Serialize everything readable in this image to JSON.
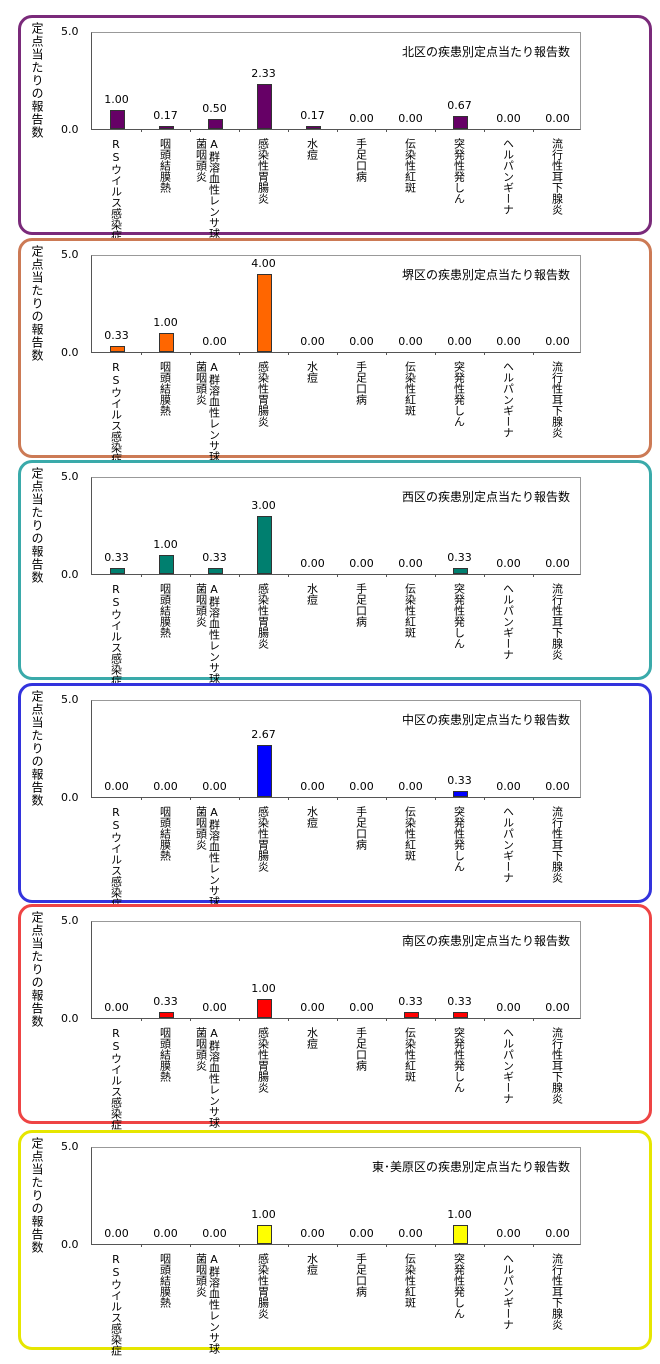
{
  "chart_data": [
    {
      "type": "bar",
      "title": "北区の疾患別定点当たり報告数",
      "ylabel": "定点当たりの報告数",
      "ylim": [
        0,
        5
      ],
      "yticks": [
        "0.0",
        "5.0"
      ],
      "color": "#660066",
      "border": "#7a2a7a",
      "categories": [
        "RSウイルス感染症",
        "咽頭結膜熱",
        "A群溶血性レンサ球菌咽頭炎",
        "感染性胃腸炎",
        "水痘",
        "手足口病",
        "伝染性紅斑",
        "突発性発しん",
        "ヘルパンギーナ",
        "流行性耳下腺炎"
      ],
      "values": [
        1.0,
        0.17,
        0.5,
        2.33,
        0.17,
        0.0,
        0.0,
        0.67,
        0.0,
        0.0
      ],
      "labels": [
        "1.00",
        "0.17",
        "0.50",
        "2.33",
        "0.17",
        "0.00",
        "0.00",
        "0.67",
        "0.00",
        "0.00"
      ]
    },
    {
      "type": "bar",
      "title": "堺区の疾患別定点当たり報告数",
      "ylabel": "定点当たりの報告数",
      "ylim": [
        0,
        5
      ],
      "yticks": [
        "0.0",
        "5.0"
      ],
      "color": "#ff6600",
      "border": "#cc7a55",
      "categories": [
        "RSウイルス感染症",
        "咽頭結膜熱",
        "A群溶血性レンサ球菌咽頭炎",
        "感染性胃腸炎",
        "水痘",
        "手足口病",
        "伝染性紅斑",
        "突発性発しん",
        "ヘルパンギーナ",
        "流行性耳下腺炎"
      ],
      "values": [
        0.33,
        1.0,
        0.0,
        4.0,
        0.0,
        0.0,
        0.0,
        0.0,
        0.0,
        0.0
      ],
      "labels": [
        "0.33",
        "1.00",
        "0.00",
        "4.00",
        "0.00",
        "0.00",
        "0.00",
        "0.00",
        "0.00",
        "0.00"
      ]
    },
    {
      "type": "bar",
      "title": "西区の疾患別定点当たり報告数",
      "ylabel": "定点当たりの報告数",
      "ylim": [
        0,
        5
      ],
      "yticks": [
        "0.0",
        "5.0"
      ],
      "color": "#007f6f",
      "border": "#3aaaaa",
      "categories": [
        "RSウイルス感染症",
        "咽頭結膜熱",
        "A群溶血性レンサ球菌咽頭炎",
        "感染性胃腸炎",
        "水痘",
        "手足口病",
        "伝染性紅斑",
        "突発性発しん",
        "ヘルパンギーナ",
        "流行性耳下腺炎"
      ],
      "values": [
        0.33,
        1.0,
        0.33,
        3.0,
        0.0,
        0.0,
        0.0,
        0.33,
        0.0,
        0.0
      ],
      "labels": [
        "0.33",
        "1.00",
        "0.33",
        "3.00",
        "0.00",
        "0.00",
        "0.00",
        "0.33",
        "0.00",
        "0.00"
      ]
    },
    {
      "type": "bar",
      "title": "中区の疾患別定点当たり報告数",
      "ylabel": "定点当たりの報告数",
      "ylim": [
        0,
        5
      ],
      "yticks": [
        "0.0",
        "5.0"
      ],
      "color": "#0000ff",
      "border": "#3333dd",
      "categories": [
        "RSウイルス感染症",
        "咽頭結膜熱",
        "A群溶血性レンサ球菌咽頭炎",
        "感染性胃腸炎",
        "水痘",
        "手足口病",
        "伝染性紅斑",
        "突発性発しん",
        "ヘルパンギーナ",
        "流行性耳下腺炎"
      ],
      "values": [
        0.0,
        0.0,
        0.0,
        2.67,
        0.0,
        0.0,
        0.0,
        0.33,
        0.0,
        0.0
      ],
      "labels": [
        "0.00",
        "0.00",
        "0.00",
        "2.67",
        "0.00",
        "0.00",
        "0.00",
        "0.33",
        "0.00",
        "0.00"
      ]
    },
    {
      "type": "bar",
      "title": "南区の疾患別定点当たり報告数",
      "ylabel": "定点当たりの報告数",
      "ylim": [
        0,
        5
      ],
      "yticks": [
        "0.0",
        "5.0"
      ],
      "color": "#ff0000",
      "border": "#ee4444",
      "categories": [
        "RSウイルス感染症",
        "咽頭結膜熱",
        "A群溶血性レンサ球菌咽頭炎",
        "感染性胃腸炎",
        "水痘",
        "手足口病",
        "伝染性紅斑",
        "突発性発しん",
        "ヘルパンギーナ",
        "流行性耳下腺炎"
      ],
      "values": [
        0.0,
        0.33,
        0.0,
        1.0,
        0.0,
        0.0,
        0.33,
        0.33,
        0.0,
        0.0
      ],
      "labels": [
        "0.00",
        "0.33",
        "0.00",
        "1.00",
        "0.00",
        "0.00",
        "0.33",
        "0.33",
        "0.00",
        "0.00"
      ]
    },
    {
      "type": "bar",
      "title": "東･美原区の疾患別定点当たり報告数",
      "ylabel": "定点当たりの報告数",
      "ylim": [
        0,
        5
      ],
      "yticks": [
        "0.0",
        "5.0"
      ],
      "color": "#ffff00",
      "border": "#e6e600",
      "categories": [
        "RSウイルス感染症",
        "咽頭結膜熱",
        "A群溶血性レンサ球菌咽頭炎",
        "感染性胃腸炎",
        "水痘",
        "手足口病",
        "伝染性紅斑",
        "突発性発しん",
        "ヘルパンギーナ",
        "流行性耳下腺炎"
      ],
      "values": [
        0.0,
        0.0,
        0.0,
        1.0,
        0.0,
        0.0,
        0.0,
        1.0,
        0.0,
        0.0
      ],
      "labels": [
        "0.00",
        "0.00",
        "0.00",
        "1.00",
        "0.00",
        "0.00",
        "0.00",
        "1.00",
        "0.00",
        "0.00"
      ]
    }
  ]
}
